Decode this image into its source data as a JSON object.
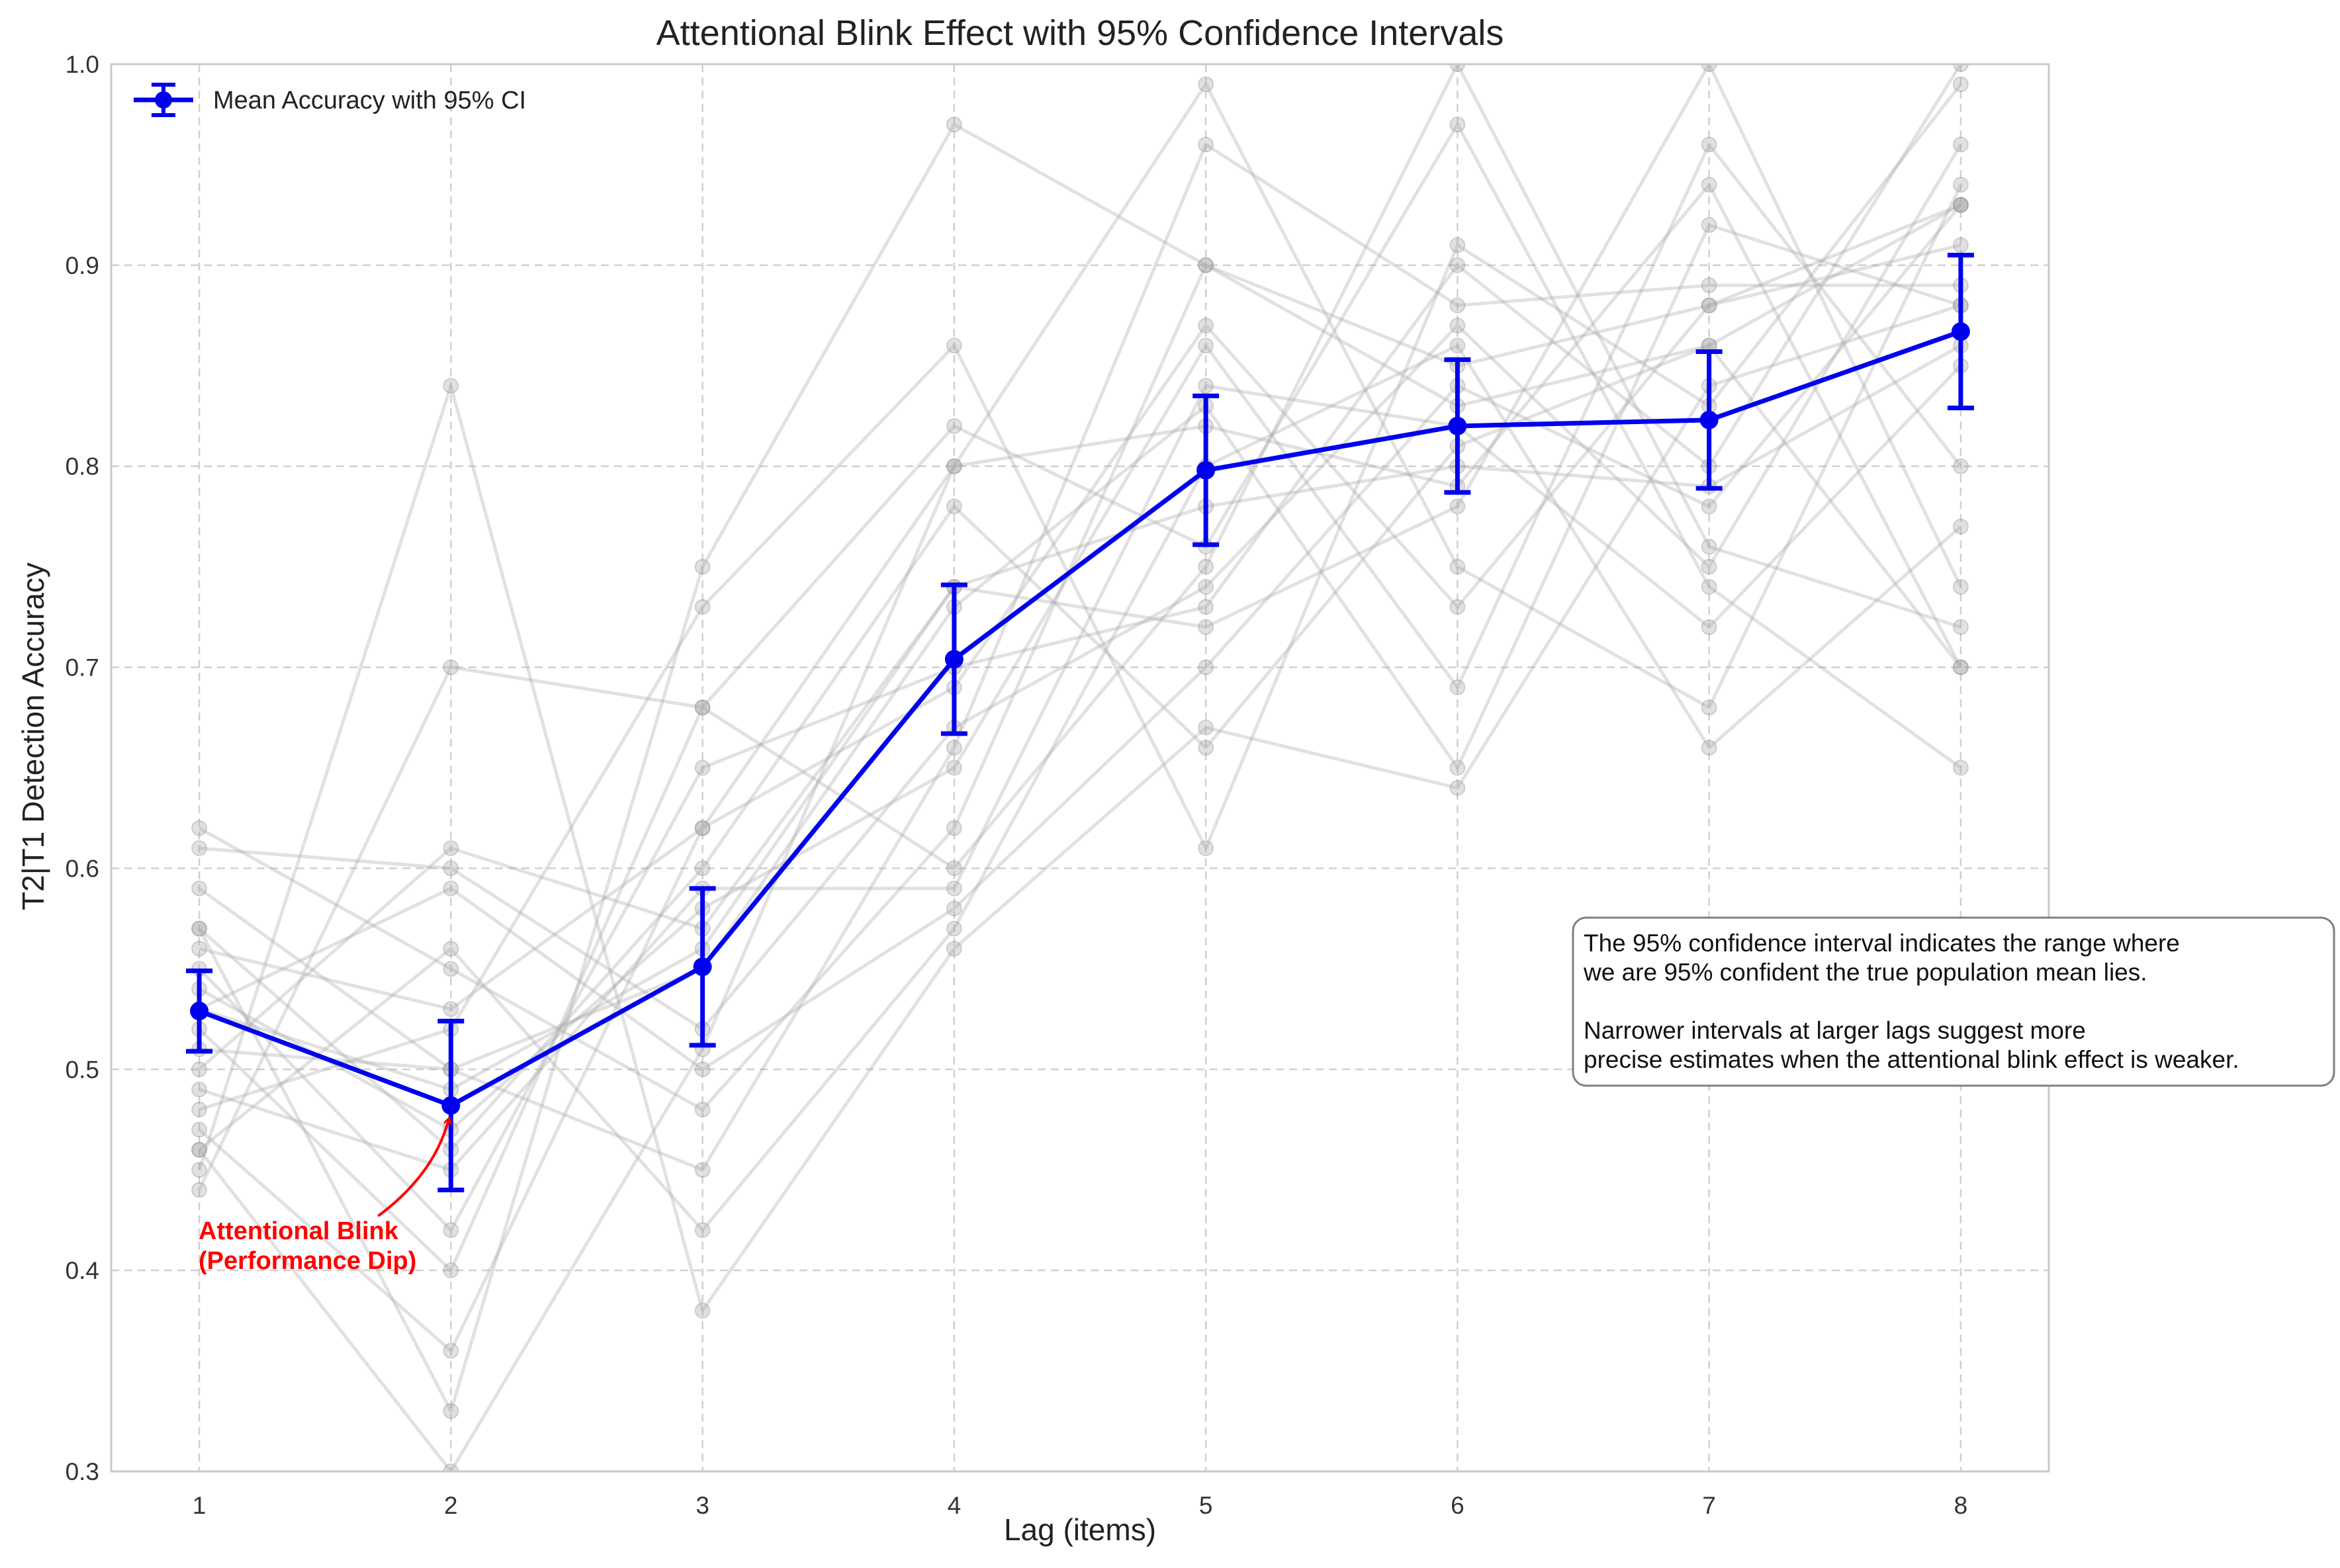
{
  "chart_data": {
    "type": "line",
    "title": "Attentional Blink Effect with 95% Confidence Intervals",
    "xlabel": "Lag (items)",
    "ylabel": "T2|T1 Detection Accuracy",
    "xlim": [
      0.65,
      8.35
    ],
    "ylim": [
      0.3,
      1.0
    ],
    "x_ticks": [
      1,
      2,
      3,
      4,
      5,
      6,
      7,
      8
    ],
    "y_ticks": [
      0.3,
      0.4,
      0.5,
      0.6,
      0.7,
      0.8,
      0.9,
      1.0
    ],
    "grid": true,
    "legend_position": "top-left",
    "colors": {
      "mean": "#0000ee",
      "participants": "#a9a9a9",
      "annotation": "#ff0000"
    },
    "series": [
      {
        "name": "Mean Accuracy with 95% CI",
        "x": [
          1,
          2,
          3,
          4,
          5,
          6,
          7,
          8
        ],
        "values": [
          0.529,
          0.482,
          0.551,
          0.704,
          0.798,
          0.82,
          0.823,
          0.867
        ],
        "ci_lower": [
          0.509,
          0.44,
          0.512,
          0.667,
          0.761,
          0.787,
          0.789,
          0.829
        ],
        "ci_upper": [
          0.549,
          0.524,
          0.59,
          0.741,
          0.835,
          0.853,
          0.857,
          0.905
        ]
      }
    ],
    "participants": [
      [
        0.62,
        0.55,
        0.48,
        0.62,
        0.9,
        0.85,
        0.88,
        0.93
      ],
      [
        0.61,
        0.6,
        0.52,
        0.67,
        0.74,
        0.87,
        0.75,
        0.96
      ],
      [
        0.59,
        0.5,
        0.55,
        0.73,
        0.83,
        0.65,
        0.92,
        0.88
      ],
      [
        0.57,
        0.46,
        0.6,
        0.78,
        0.66,
        0.81,
        0.86,
        0.7
      ],
      [
        0.56,
        0.53,
        0.62,
        0.8,
        0.99,
        0.75,
        0.68,
        0.94
      ],
      [
        0.55,
        0.42,
        0.65,
        0.7,
        0.73,
        0.9,
        0.8,
        1.0
      ],
      [
        0.54,
        0.47,
        0.58,
        0.65,
        0.86,
        0.69,
        0.96,
        0.8
      ],
      [
        0.53,
        0.59,
        0.5,
        0.58,
        0.7,
        0.84,
        0.78,
        0.93
      ],
      [
        0.52,
        0.4,
        0.68,
        0.82,
        0.76,
        0.97,
        0.74,
        0.65
      ],
      [
        0.51,
        0.5,
        0.45,
        0.66,
        0.96,
        0.88,
        0.89,
        0.89
      ],
      [
        0.5,
        0.61,
        0.57,
        0.74,
        0.72,
        0.78,
        1.0,
        0.74
      ],
      [
        0.49,
        0.45,
        0.59,
        0.59,
        0.84,
        0.82,
        0.72,
        0.85
      ],
      [
        0.48,
        0.52,
        0.73,
        0.86,
        0.61,
        0.91,
        0.83,
        0.99
      ],
      [
        0.47,
        0.36,
        0.62,
        0.69,
        0.87,
        0.73,
        0.88,
        0.91
      ],
      [
        0.46,
        0.56,
        0.42,
        0.57,
        0.8,
        0.86,
        0.66,
        0.77
      ],
      [
        0.46,
        0.3,
        0.51,
        0.8,
        0.82,
        0.79,
        0.94,
        0.7
      ],
      [
        0.45,
        0.84,
        0.38,
        0.56,
        0.67,
        0.64,
        0.84,
        0.88
      ],
      [
        0.44,
        0.7,
        0.68,
        0.6,
        0.75,
        1.0,
        0.76,
        0.72
      ],
      [
        0.57,
        0.33,
        0.75,
        0.97,
        0.9,
        0.83,
        0.86,
        0.93
      ],
      [
        0.53,
        0.49,
        0.56,
        0.74,
        0.78,
        0.8,
        0.79,
        0.86
      ]
    ],
    "legend": {
      "label": "Mean Accuracy with 95% CI"
    },
    "annotation": {
      "line1": "Attentional Blink",
      "line2": "(Performance Dip)",
      "target_x": 2,
      "target_y": 0.482
    },
    "note": {
      "lines": [
        "The 95% confidence interval indicates the range where",
        "we are 95% confident the true population mean lies.",
        "",
        "Narrower intervals at larger lags suggest more",
        "precise estimates when the attentional blink effect is weaker."
      ]
    }
  }
}
